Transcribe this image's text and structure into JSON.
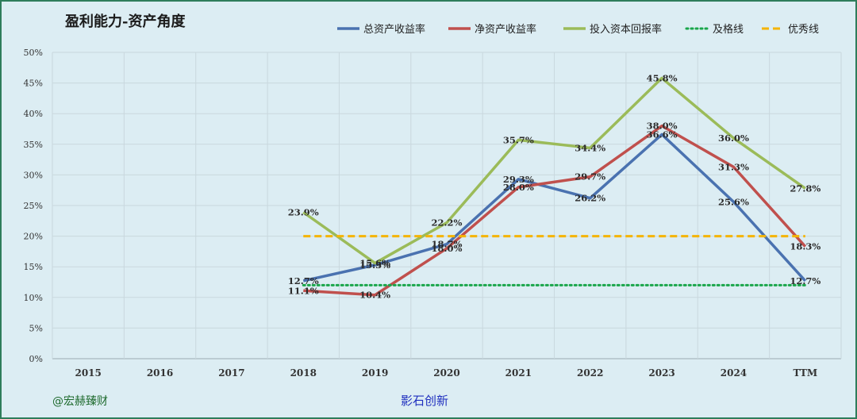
{
  "chart_data": {
    "type": "line",
    "title": "盈利能力-资产角度",
    "categories": [
      "2015",
      "2016",
      "2017",
      "2018",
      "2019",
      "2020",
      "2021",
      "2022",
      "2023",
      "2024",
      "TTM"
    ],
    "y_ticks": [
      "0%",
      "5%",
      "10%",
      "15%",
      "20%",
      "25%",
      "30%",
      "35%",
      "40%",
      "45%",
      "50%"
    ],
    "ylim": [
      0,
      50
    ],
    "grid": true,
    "legend_position": "top-right",
    "series": [
      {
        "name": "总资产收益率",
        "color": "#4a72b0",
        "style": "solid",
        "values": [
          null,
          null,
          null,
          12.7,
          15.3,
          18.7,
          29.3,
          26.2,
          36.6,
          25.6,
          12.7
        ],
        "labels": [
          "",
          "",
          "",
          "12.7%",
          "15.3%",
          "18.7%",
          "29.3%",
          "26.2%",
          "36.6%",
          "25.6%",
          "12.7%"
        ]
      },
      {
        "name": "净资产收益率",
        "color": "#c0504d",
        "style": "solid",
        "values": [
          null,
          null,
          null,
          11.1,
          10.4,
          18.0,
          28.0,
          29.7,
          38.0,
          31.3,
          18.3
        ],
        "labels": [
          "",
          "",
          "",
          "11.1%",
          "10.4%",
          "18.0%",
          "28.0%",
          "29.7%",
          "38.0%",
          "31.3%",
          "18.3%"
        ]
      },
      {
        "name": "投入资本回报率",
        "color": "#9bbb59",
        "style": "solid",
        "values": [
          null,
          null,
          null,
          23.9,
          15.6,
          22.2,
          35.7,
          34.4,
          45.8,
          36.0,
          27.8
        ],
        "labels": [
          "",
          "",
          "",
          "23.9%",
          "15.6%",
          "22.2%",
          "35.7%",
          "34.4%",
          "45.8%",
          "36.0%",
          "27.8%"
        ]
      },
      {
        "name": "及格线",
        "color": "#1aa64b",
        "style": "dotted",
        "values": [
          null,
          null,
          null,
          12,
          12,
          12,
          12,
          12,
          12,
          12,
          12
        ]
      },
      {
        "name": "优秀线",
        "color": "#f5b400",
        "style": "dashed",
        "values": [
          null,
          null,
          null,
          20,
          20,
          20,
          20,
          20,
          20,
          20,
          20
        ]
      }
    ]
  },
  "watermark_left": "@宏赫臻财",
  "watermark_center": "影石创新"
}
